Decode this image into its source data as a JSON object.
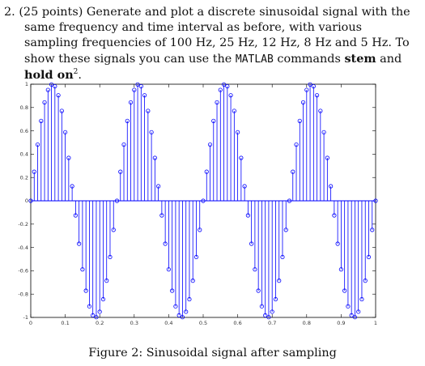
{
  "problem": {
    "number": "2.",
    "points": "(25 points)",
    "text_part1": " Generate and plot a discrete sinusoidal signal with the same frequency and time interval as before, with various sampling frequencies of 100 Hz, 25 Hz, 12 Hz, 8 Hz and 5 Hz. To show these signals you can use the ",
    "matlab": "MATLAB",
    "text_part2": " commands ",
    "cmd_stem": "stem",
    "text_and": " and ",
    "cmd_hold": "hold on",
    "footnote_mark": "2",
    "text_end": "."
  },
  "figure": {
    "caption": "Figure 2: Sinusoidal signal after sampling"
  },
  "chart_data": {
    "type": "stem",
    "title": "",
    "xlabel": "",
    "ylabel": "",
    "xlim": [
      0,
      1
    ],
    "ylim": [
      -1,
      1
    ],
    "x_ticks": [
      "0",
      "0.1",
      "0.2",
      "0.3",
      "0.4",
      "0.5",
      "0.6",
      "0.7",
      "0.8",
      "0.9",
      "1"
    ],
    "y_ticks": [
      "-1",
      "-0.8",
      "-0.6",
      "-0.4",
      "-0.2",
      "0",
      "0.2",
      "0.4",
      "0.6",
      "0.8",
      "1"
    ],
    "signal": "sin(2*pi*4*t)",
    "sample_rate_hz": 100,
    "x": [
      0,
      0.01,
      0.02,
      0.03,
      0.04,
      0.05,
      0.06,
      0.07,
      0.08,
      0.09,
      0.1,
      0.11,
      0.12,
      0.13,
      0.14,
      0.15,
      0.16,
      0.17,
      0.18,
      0.19,
      0.2,
      0.21,
      0.22,
      0.23,
      0.24,
      0.25,
      0.26,
      0.27,
      0.28,
      0.29,
      0.3,
      0.31,
      0.32,
      0.33,
      0.34,
      0.35,
      0.36,
      0.37,
      0.38,
      0.39,
      0.4,
      0.41,
      0.42,
      0.43,
      0.44,
      0.45,
      0.46,
      0.47,
      0.48,
      0.49,
      0.5,
      0.51,
      0.52,
      0.53,
      0.54,
      0.55,
      0.56,
      0.57,
      0.58,
      0.59,
      0.6,
      0.61,
      0.62,
      0.63,
      0.64,
      0.65,
      0.66,
      0.67,
      0.68,
      0.69,
      0.7,
      0.71,
      0.72,
      0.73,
      0.74,
      0.75,
      0.76,
      0.77,
      0.78,
      0.79,
      0.8,
      0.81,
      0.82,
      0.83,
      0.84,
      0.85,
      0.86,
      0.87,
      0.88,
      0.89,
      0.9,
      0.91,
      0.92,
      0.93,
      0.94,
      0.95,
      0.96,
      0.97,
      0.98,
      0.99,
      1
    ],
    "y": [
      0,
      0.249,
      0.482,
      0.685,
      0.844,
      0.951,
      0.998,
      0.982,
      0.905,
      0.771,
      0.588,
      0.368,
      0.125,
      -0.125,
      -0.368,
      -0.588,
      -0.771,
      -0.905,
      -0.982,
      -0.998,
      -0.951,
      -0.844,
      -0.685,
      -0.482,
      -0.249,
      0,
      0.249,
      0.482,
      0.685,
      0.844,
      0.951,
      0.998,
      0.982,
      0.905,
      0.771,
      0.588,
      0.368,
      0.125,
      -0.125,
      -0.368,
      -0.588,
      -0.771,
      -0.905,
      -0.982,
      -0.998,
      -0.951,
      -0.844,
      -0.685,
      -0.482,
      -0.249,
      0,
      0.249,
      0.482,
      0.685,
      0.844,
      0.951,
      0.998,
      0.982,
      0.905,
      0.771,
      0.588,
      0.368,
      0.125,
      -0.125,
      -0.368,
      -0.588,
      -0.771,
      -0.905,
      -0.982,
      -0.998,
      -0.951,
      -0.844,
      -0.685,
      -0.482,
      -0.249,
      0,
      0.249,
      0.482,
      0.685,
      0.844,
      0.951,
      0.998,
      0.982,
      0.905,
      0.771,
      0.588,
      0.368,
      0.125,
      -0.125,
      -0.368,
      -0.588,
      -0.771,
      -0.905,
      -0.982,
      -0.998,
      -0.951,
      -0.844,
      -0.685,
      -0.482,
      -0.249,
      0
    ],
    "stem_color": "#0000ff",
    "baseline_color": "#0000ff",
    "grid": false
  }
}
